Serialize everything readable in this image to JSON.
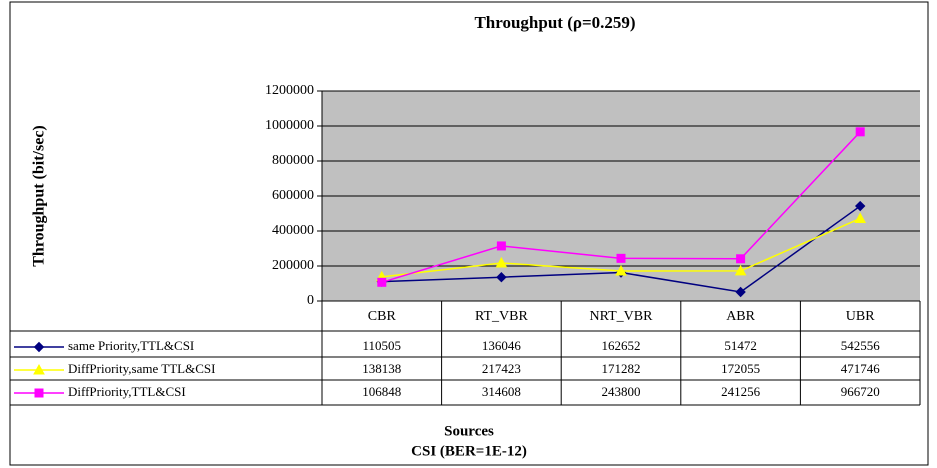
{
  "chart_data": {
    "type": "line",
    "title": "Throughput (ρ=0.259)",
    "y_label": "Throughput (bit/sec)",
    "x_label": "Sources",
    "annotations": [
      "CSI (BER=1E-12)"
    ],
    "categories": [
      "CBR",
      "RT_VBR",
      "NRT_VBR",
      "ABR",
      "UBR"
    ],
    "series": [
      {
        "name": "same Priority,TTL&CSI",
        "color": "#000080",
        "marker": "diamond",
        "values": [
          110505,
          136046,
          162652,
          51472,
          542556
        ]
      },
      {
        "name": "DiffPriority,same TTL&CSI",
        "color": "#ffff00",
        "marker": "triangle",
        "values": [
          138138,
          217423,
          171282,
          172055,
          471746
        ]
      },
      {
        "name": "DiffPriority,TTL&CSI",
        "color": "#ff00ff",
        "marker": "square",
        "values": [
          106848,
          314608,
          243800,
          241256,
          966720
        ]
      }
    ],
    "ylim": [
      0,
      1200000
    ],
    "yticks": [
      0,
      200000,
      400000,
      600000,
      800000,
      1000000,
      1200000
    ],
    "grid": true,
    "plot_background": "#c0c0c0"
  }
}
